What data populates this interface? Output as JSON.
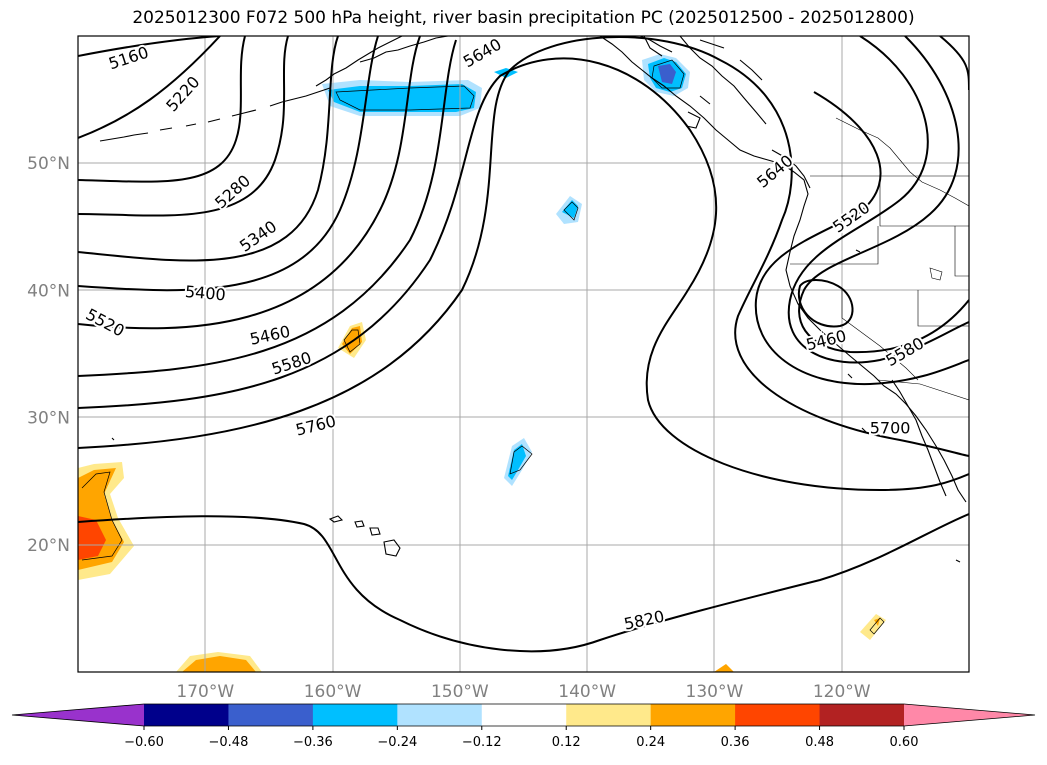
{
  "title": "2025012300 F072 500 hPa height, river basin precipitation PC (2025012500 - 2025012800)",
  "map": {
    "projection": "PlateCarree",
    "extent": {
      "lon_min": -180,
      "lon_max": -110,
      "lat_min": 10,
      "lat_max": 60
    },
    "lat_ticks": [
      {
        "lat": 20,
        "label": "20°N"
      },
      {
        "lat": 30,
        "label": "30°N"
      },
      {
        "lat": 40,
        "label": "40°N"
      },
      {
        "lat": 50,
        "label": "50°N"
      }
    ],
    "lon_ticks": [
      {
        "lon": -170,
        "label": "170°W"
      },
      {
        "lon": -160,
        "label": "160°W"
      },
      {
        "lon": -150,
        "label": "150°W"
      },
      {
        "lon": -140,
        "label": "140°W"
      },
      {
        "lon": -130,
        "label": "130°W"
      },
      {
        "lon": -120,
        "label": "120°W"
      }
    ],
    "grid": true,
    "contour_labels": [
      {
        "text": "5160",
        "lon": -176,
        "lat": 58.2,
        "angle": -18
      },
      {
        "text": "5220",
        "lon": -171.7,
        "lat": 55.4,
        "angle": -48
      },
      {
        "text": "5280",
        "lon": -167.8,
        "lat": 47.7,
        "angle": -42
      },
      {
        "text": "5340",
        "lon": -165.8,
        "lat": 44.2,
        "angle": -35
      },
      {
        "text": "5400",
        "lon": -170,
        "lat": 39.7,
        "angle": 5
      },
      {
        "text": "5520",
        "lon": -177.9,
        "lat": 37.4,
        "angle": 28
      },
      {
        "text": "5460",
        "lon": -164.9,
        "lat": 36.4,
        "angle": -12
      },
      {
        "text": "5580",
        "lon": -163.2,
        "lat": 34.2,
        "angle": -18
      },
      {
        "text": "5760",
        "lon": -161.3,
        "lat": 29.3,
        "angle": -14
      },
      {
        "text": "5640",
        "lon": -148.2,
        "lat": 58.6,
        "angle": -30
      },
      {
        "text": "5640",
        "lon": -125.2,
        "lat": 49.3,
        "angle": -40
      },
      {
        "text": "5520",
        "lon": -119.2,
        "lat": 45.7,
        "angle": -35
      },
      {
        "text": "5460",
        "lon": -121.2,
        "lat": 36.0,
        "angle": -14
      },
      {
        "text": "5580",
        "lon": -115,
        "lat": 35.1,
        "angle": -30
      },
      {
        "text": "5700",
        "lon": -116.2,
        "lat": 29.1,
        "angle": 0
      },
      {
        "text": "5820",
        "lon": -135.5,
        "lat": 14.0,
        "angle": -12
      }
    ]
  },
  "colorbar": {
    "ticks": [
      "−0.60",
      "−0.48",
      "−0.36",
      "−0.24",
      "−0.12",
      "0.12",
      "0.24",
      "0.36",
      "0.48",
      "0.60"
    ],
    "under_color": "#9932cc",
    "over_color": "#ff88a8",
    "colors": [
      "#00008b",
      "#3a5fcd",
      "#00bfff",
      "#b0e2ff",
      "#ffffff",
      "#ffe98b",
      "#ffa500",
      "#ff4500",
      "#b22222"
    ]
  }
}
